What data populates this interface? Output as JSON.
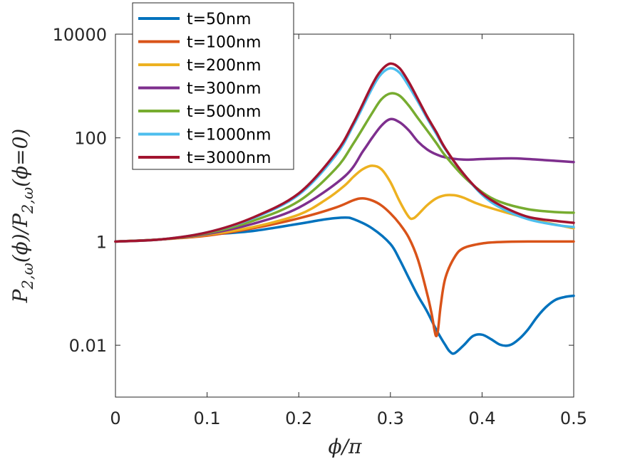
{
  "chart_data": {
    "type": "line",
    "title": "",
    "xlabel": "ϕ/π",
    "ylabel": "P2,ω(ϕ)/P2,ω(ϕ=0)",
    "ylabel_parts": {
      "p1": "P",
      "s1": "2,ω",
      "m1": "(ϕ)/",
      "p2": "P",
      "s2": "2,ω",
      "m2": "(ϕ=0)"
    },
    "xlim": [
      0,
      0.5
    ],
    "ylim": [
      0.001,
      10000
    ],
    "yscale": "log",
    "grid": false,
    "legend_position": "top-left",
    "xticks": [
      {
        "value": 0,
        "label": "0"
      },
      {
        "value": 0.1,
        "label": "0.1"
      },
      {
        "value": 0.2,
        "label": "0.2"
      },
      {
        "value": 0.3,
        "label": "0.3"
      },
      {
        "value": 0.4,
        "label": "0.4"
      },
      {
        "value": 0.5,
        "label": "0.5"
      }
    ],
    "yticks": [
      {
        "value": 0.01,
        "label": "0.01"
      },
      {
        "value": 1,
        "label": "1"
      },
      {
        "value": 100,
        "label": "100"
      },
      {
        "value": 10000,
        "label": "10000"
      }
    ],
    "series": [
      {
        "name": "t=50nm",
        "color": "#0072BD",
        "x": [
          0,
          0.05,
          0.1,
          0.15,
          0.2,
          0.23,
          0.25,
          0.26,
          0.28,
          0.3,
          0.31,
          0.32,
          0.33,
          0.34,
          0.35,
          0.36,
          0.365,
          0.37,
          0.38,
          0.39,
          0.4,
          0.41,
          0.42,
          0.43,
          0.44,
          0.45,
          0.46,
          0.47,
          0.48,
          0.49,
          0.5
        ],
        "y": [
          1,
          1.1,
          1.35,
          1.6,
          2.2,
          2.7,
          2.9,
          2.7,
          1.8,
          0.9,
          0.45,
          0.2,
          0.09,
          0.045,
          0.02,
          0.01,
          0.0075,
          0.007,
          0.01,
          0.015,
          0.016,
          0.013,
          0.0102,
          0.01,
          0.013,
          0.02,
          0.035,
          0.055,
          0.075,
          0.085,
          0.09
        ]
      },
      {
        "name": "t=100nm",
        "color": "#D95319",
        "x": [
          0,
          0.05,
          0.1,
          0.15,
          0.2,
          0.24,
          0.26,
          0.27,
          0.28,
          0.29,
          0.3,
          0.31,
          0.32,
          0.33,
          0.34,
          0.345,
          0.348,
          0.35,
          0.352,
          0.355,
          0.36,
          0.37,
          0.38,
          0.4,
          0.42,
          0.45,
          0.5
        ],
        "y": [
          1,
          1.1,
          1.3,
          1.8,
          2.8,
          4.5,
          6.3,
          6.8,
          6.2,
          5,
          3.5,
          2.2,
          1.2,
          0.45,
          0.1,
          0.04,
          0.02,
          0.015,
          0.02,
          0.06,
          0.2,
          0.5,
          0.75,
          0.92,
          0.98,
          1,
          1
        ]
      },
      {
        "name": "t=200nm",
        "color": "#EDB120",
        "x": [
          0,
          0.05,
          0.1,
          0.15,
          0.2,
          0.23,
          0.25,
          0.26,
          0.27,
          0.28,
          0.29,
          0.3,
          0.31,
          0.32,
          0.325,
          0.33,
          0.34,
          0.35,
          0.36,
          0.37,
          0.38,
          0.4,
          0.45,
          0.5
        ],
        "y": [
          1,
          1.1,
          1.35,
          1.9,
          3.3,
          6.5,
          12,
          18,
          25,
          29,
          25,
          14,
          6,
          3,
          2.8,
          3.3,
          5,
          6.8,
          7.8,
          7.8,
          7,
          5,
          2.8,
          1.8
        ]
      },
      {
        "name": "t=300nm",
        "color": "#7E2F8E",
        "x": [
          0,
          0.05,
          0.1,
          0.15,
          0.2,
          0.25,
          0.27,
          0.28,
          0.29,
          0.3,
          0.31,
          0.32,
          0.33,
          0.34,
          0.35,
          0.36,
          0.38,
          0.4,
          0.42,
          0.44,
          0.46,
          0.48,
          0.5
        ],
        "y": [
          1,
          1.1,
          1.4,
          2.2,
          4.5,
          18,
          55,
          100,
          170,
          230,
          200,
          140,
          85,
          60,
          48,
          42,
          38,
          39,
          40,
          40,
          38,
          36,
          34
        ]
      },
      {
        "name": "t=500nm",
        "color": "#77AC30",
        "x": [
          0,
          0.05,
          0.1,
          0.15,
          0.2,
          0.24,
          0.26,
          0.28,
          0.29,
          0.3,
          0.31,
          0.32,
          0.33,
          0.34,
          0.35,
          0.36,
          0.38,
          0.4,
          0.42,
          0.45,
          0.48,
          0.5
        ],
        "y": [
          1,
          1.1,
          1.45,
          2.5,
          6,
          25,
          80,
          300,
          550,
          720,
          650,
          420,
          240,
          140,
          80,
          45,
          18,
          9,
          5.8,
          4.2,
          3.7,
          3.6
        ]
      },
      {
        "name": "t=1000nm",
        "color": "#4DBEEE",
        "x": [
          0,
          0.05,
          0.1,
          0.15,
          0.2,
          0.24,
          0.26,
          0.28,
          0.29,
          0.3,
          0.31,
          0.32,
          0.33,
          0.34,
          0.35,
          0.36,
          0.38,
          0.4,
          0.42,
          0.45,
          0.48,
          0.5
        ],
        "y": [
          1,
          1.1,
          1.5,
          2.8,
          8,
          45,
          180,
          900,
          1700,
          2200,
          1800,
          1000,
          500,
          240,
          120,
          60,
          20,
          8,
          4.5,
          2.7,
          2.1,
          1.9
        ]
      },
      {
        "name": "t=3000nm",
        "color": "#A2142F",
        "x": [
          0,
          0.05,
          0.1,
          0.15,
          0.2,
          0.24,
          0.26,
          0.28,
          0.29,
          0.3,
          0.31,
          0.32,
          0.33,
          0.34,
          0.35,
          0.36,
          0.38,
          0.4,
          0.42,
          0.45,
          0.48,
          0.5
        ],
        "y": [
          1,
          1.1,
          1.5,
          2.9,
          8.5,
          50,
          200,
          1050,
          2000,
          2700,
          2200,
          1200,
          560,
          260,
          130,
          62,
          20,
          8.5,
          5,
          3,
          2.5,
          2.3
        ]
      }
    ]
  }
}
